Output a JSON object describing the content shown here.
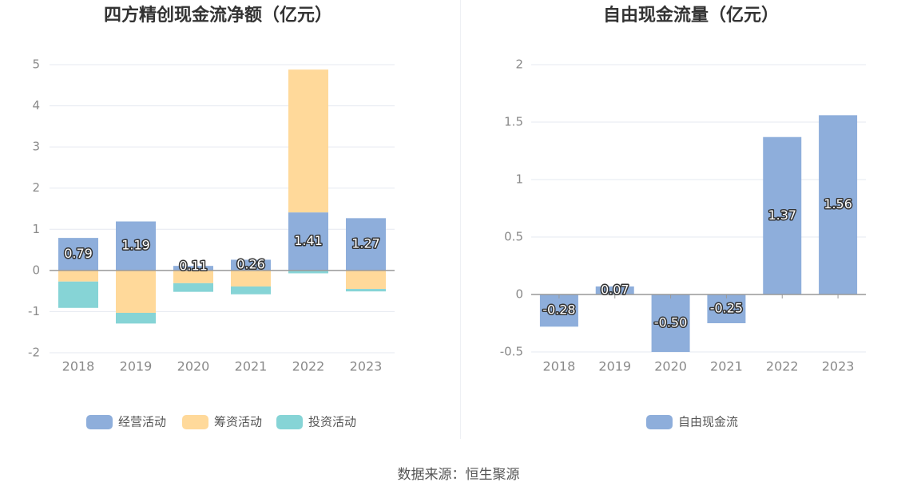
{
  "source_label": "数据来源：恒生聚源",
  "colors": {
    "operating": "#8eaedb",
    "financing": "#ffd99a",
    "investing": "#86d4d6",
    "free_cash_flow": "#8eaedb",
    "grid": "#e6e9f0",
    "axis_text": "#8a8a8a",
    "title": "#333333"
  },
  "chart_data": [
    {
      "type": "bar",
      "stacked": true,
      "title": "四方精创现金流净额（亿元）",
      "categories": [
        "2018",
        "2019",
        "2020",
        "2021",
        "2022",
        "2023"
      ],
      "ylim": [
        -2,
        5
      ],
      "yticks": [
        5,
        4,
        3,
        2,
        1,
        0,
        -1,
        -2
      ],
      "grid": true,
      "legend_position": "bottom",
      "series": [
        {
          "name": "经营活动",
          "values": [
            0.79,
            1.19,
            0.11,
            0.26,
            1.41,
            1.27
          ],
          "labels": [
            "0.79",
            "1.19",
            "0.11",
            "0.26",
            "1.41",
            "1.27"
          ]
        },
        {
          "name": "筹资活动",
          "values": [
            -0.27,
            -1.03,
            -0.31,
            -0.39,
            3.47,
            -0.45
          ],
          "labels": []
        },
        {
          "name": "投资活动",
          "values": [
            -0.64,
            -0.26,
            -0.21,
            -0.19,
            -0.07,
            -0.06
          ],
          "labels": []
        }
      ]
    },
    {
      "type": "bar",
      "stacked": false,
      "title": "自由现金流量（亿元）",
      "categories": [
        "2018",
        "2019",
        "2020",
        "2021",
        "2022",
        "2023"
      ],
      "ylim": [
        -0.5,
        2
      ],
      "yticks": [
        "2",
        "1.5",
        "1",
        "0.5",
        "0",
        "-0.5"
      ],
      "ytick_values": [
        2,
        1.5,
        1,
        0.5,
        0,
        -0.5
      ],
      "grid": true,
      "legend_position": "bottom",
      "series": [
        {
          "name": "自由现金流",
          "values": [
            -0.28,
            0.07,
            -0.5,
            -0.25,
            1.37,
            1.56
          ],
          "labels": [
            "-0.28",
            "0.07",
            "-0.50",
            "-0.25",
            "1.37",
            "1.56"
          ]
        }
      ]
    }
  ]
}
